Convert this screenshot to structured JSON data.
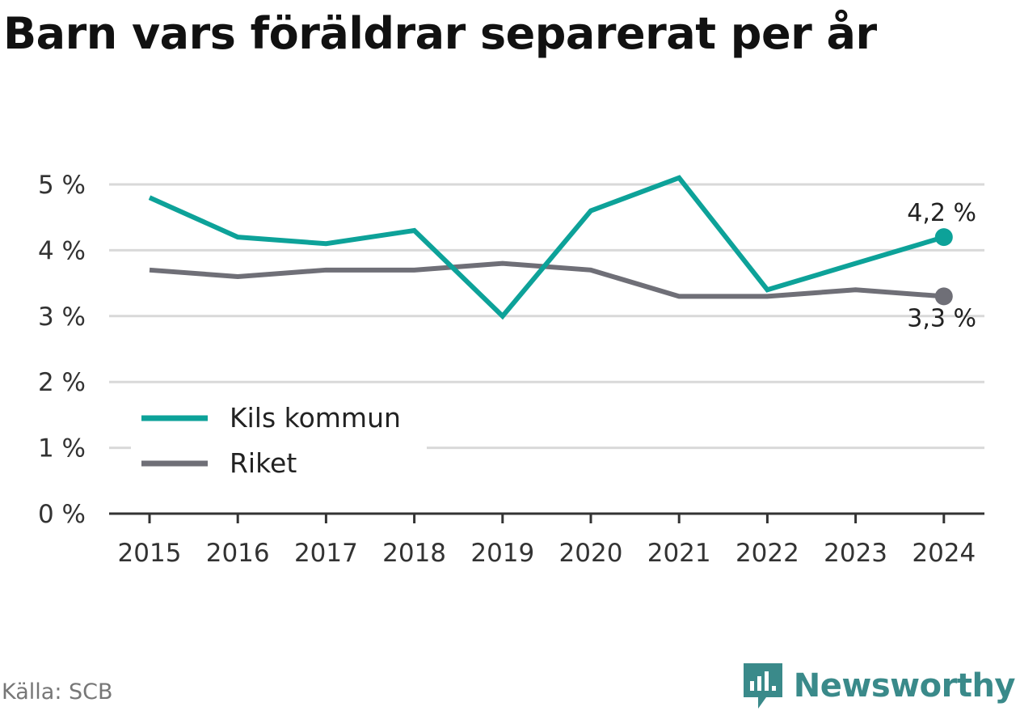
{
  "title": "Barn vars föräldrar separerat per år",
  "source": "Källa: SCB",
  "brand": "Newsworthy",
  "colors": {
    "primary": "#0da299",
    "secondary": "#6f6f77",
    "grid": "#d9d9d9",
    "axis": "#333333",
    "brand": "#3a8a8a"
  },
  "chart_data": {
    "type": "line",
    "x": [
      "2015",
      "2016",
      "2017",
      "2018",
      "2019",
      "2020",
      "2021",
      "2022",
      "2023",
      "2024"
    ],
    "series": [
      {
        "name": "Kils kommun",
        "color": "#0da299",
        "values": [
          4.8,
          4.2,
          4.1,
          4.3,
          3.0,
          4.6,
          5.1,
          3.4,
          3.8,
          4.2
        ],
        "end_label": "4,2 %"
      },
      {
        "name": "Riket",
        "color": "#6f6f77",
        "values": [
          3.7,
          3.6,
          3.7,
          3.7,
          3.8,
          3.7,
          3.3,
          3.3,
          3.4,
          3.3
        ],
        "end_label": "3,3 %"
      }
    ],
    "yticks": [
      "0 %",
      "1 %",
      "2 %",
      "3 %",
      "4 %",
      "5 %"
    ],
    "ylim": [
      0,
      5
    ],
    "grid": true,
    "legend_position": "bottom-left"
  }
}
